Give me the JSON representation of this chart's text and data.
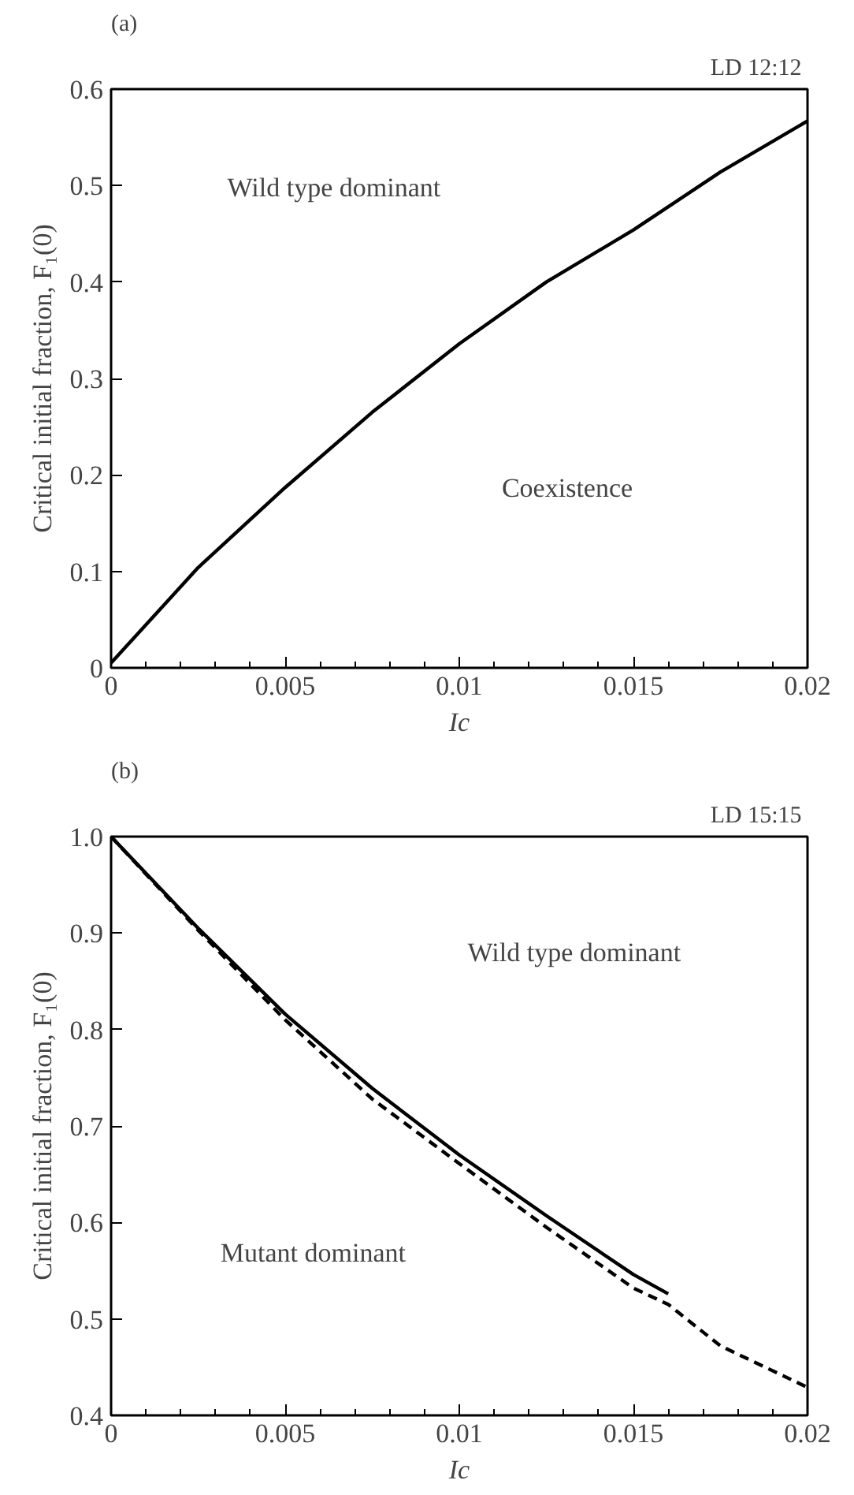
{
  "chart_data": [
    {
      "type": "line",
      "title": "(a)",
      "subtitle": "LD  12:12",
      "xlabel": "Ic",
      "ylabel": "Critical initial fraction, F₁(0)",
      "xlim": [
        0,
        0.02
      ],
      "ylim": [
        0,
        0.6
      ],
      "xticks": [
        0,
        0.005,
        0.01,
        0.015,
        0.02
      ],
      "yticks": [
        0,
        0.1,
        0.2,
        0.3,
        0.4,
        0.5,
        0.6
      ],
      "grid": false,
      "annotations": [
        "Wild type dominant",
        "Coexistence"
      ],
      "series": [
        {
          "color": "#000000",
          "line_style": "solid",
          "x": [
            0,
            0.0025,
            0.005,
            0.0075,
            0.01,
            0.0125,
            0.015,
            0.0175,
            0.02
          ],
          "values": [
            0.005,
            0.104,
            0.187,
            0.265,
            0.336,
            0.4,
            0.454,
            0.514,
            0.567
          ]
        }
      ]
    },
    {
      "type": "line",
      "title": "(b)",
      "subtitle": "LD  15:15",
      "xlabel": "Ic",
      "ylabel": "Critical initial fraction, F₁(0)",
      "xlim": [
        0,
        0.02
      ],
      "ylim": [
        0.4,
        1.0
      ],
      "xticks": [
        0,
        0.005,
        0.01,
        0.015,
        0.02
      ],
      "yticks": [
        {
          "value": 0.4,
          "label": "0.4"
        },
        {
          "value": 0.5,
          "label": "0.5"
        },
        {
          "value": 0.6,
          "label": "0.6"
        },
        {
          "value": 0.7,
          "label": "0.7"
        },
        {
          "value": 0.8,
          "label": "0.8"
        },
        {
          "value": 0.9,
          "label": "0.9"
        },
        {
          "value": 1.0,
          "label": "1.0"
        }
      ],
      "grid": false,
      "annotations": [
        "Wild type dominant",
        "Mutant dominant"
      ],
      "series": [
        {
          "color": "#000000",
          "line_style": "solid",
          "x": [
            0,
            0.0025,
            0.005,
            0.0075,
            0.01,
            0.0125,
            0.015,
            0.016
          ],
          "values": [
            1.0,
            0.905,
            0.816,
            0.739,
            0.67,
            0.607,
            0.546,
            0.526
          ]
        },
        {
          "color": "#000000",
          "line_style": "dashed",
          "x": [
            0,
            0.0025,
            0.005,
            0.0075,
            0.01,
            0.0125,
            0.015,
            0.016,
            0.0175,
            0.02
          ],
          "values": [
            1.0,
            0.903,
            0.81,
            0.728,
            0.661,
            0.595,
            0.532,
            0.515,
            0.472,
            0.429
          ]
        }
      ]
    }
  ]
}
